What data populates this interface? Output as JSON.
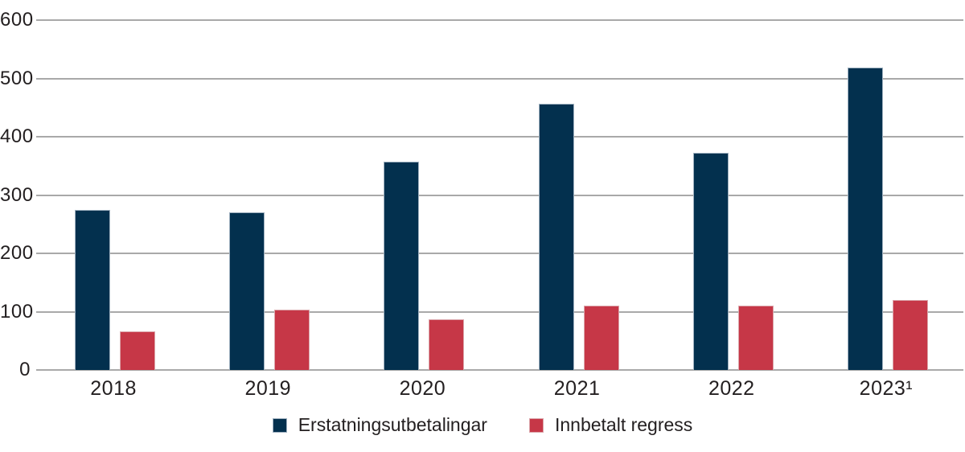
{
  "figure": {
    "background_color": "#ffffff",
    "text_color": "#231f20",
    "grid_color": "#a9a9a9"
  },
  "chart_data": {
    "type": "bar",
    "title": "",
    "xlabel": "",
    "ylabel": "",
    "categories": [
      "2018",
      "2019",
      "2020",
      "2021",
      "2022",
      "2023¹"
    ],
    "series": [
      {
        "name": "Erstatningsutbetalingar",
        "color": "#03304e",
        "border_color": "#9fb0bf",
        "values": [
          274,
          270,
          357,
          456,
          372,
          518
        ]
      },
      {
        "name": "Innbetalt regress",
        "color": "#c63747",
        "border_color": "#dba6ab",
        "values": [
          66,
          103,
          87,
          110,
          110,
          120
        ]
      }
    ],
    "ylim": [
      0,
      600
    ],
    "yticks": [
      0,
      100,
      200,
      300,
      400,
      500,
      600
    ],
    "grid": true,
    "legend_position": "bottom"
  }
}
